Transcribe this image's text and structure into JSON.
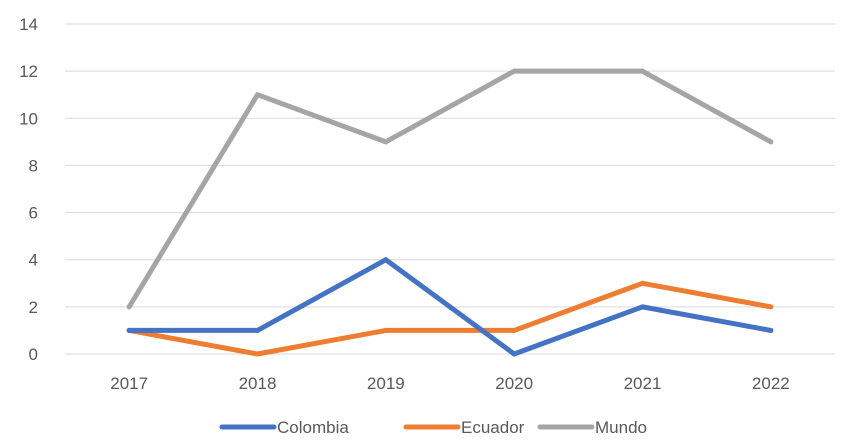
{
  "chart_data": {
    "type": "line",
    "x": [
      "2017",
      "2018",
      "2019",
      "2020",
      "2021",
      "2022"
    ],
    "series": [
      {
        "name": "Colombia",
        "color": "#4472c4",
        "values": [
          1,
          1,
          4,
          0,
          2,
          1
        ]
      },
      {
        "name": "Ecuador",
        "color": "#ed7d31",
        "values": [
          1,
          0,
          1,
          1,
          3,
          2
        ]
      },
      {
        "name": "Mundo",
        "color": "#a5a5a5",
        "values": [
          2,
          11,
          9,
          12,
          12,
          9
        ]
      }
    ],
    "yticks": [
      "0",
      "2",
      "4",
      "6",
      "8",
      "10",
      "12",
      "14"
    ],
    "ylim": [
      0,
      14
    ],
    "grid": true,
    "legend": "bottom-center"
  }
}
